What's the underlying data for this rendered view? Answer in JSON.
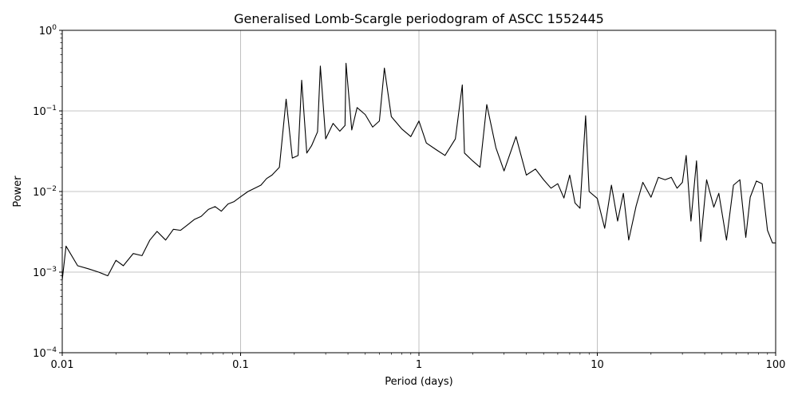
{
  "chart_data": {
    "type": "line",
    "title": "Generalised Lomb-Scargle periodogram of ASCC 1552445",
    "xlabel": "Period (days)",
    "ylabel": "Power",
    "xscale": "log",
    "yscale": "log",
    "xlim": [
      0.01,
      100
    ],
    "ylim": [
      0.0001,
      1
    ],
    "grid": true,
    "x_ticks": [
      {
        "value": 0.01,
        "label": "0.01"
      },
      {
        "value": 0.1,
        "label": "0.1"
      },
      {
        "value": 1,
        "label": "1"
      },
      {
        "value": 10,
        "label": "10"
      },
      {
        "value": 100,
        "label": "100"
      }
    ],
    "y_ticks": [
      {
        "value": 0.0001,
        "base": "10",
        "exp": "−4"
      },
      {
        "value": 0.001,
        "base": "10",
        "exp": "−3"
      },
      {
        "value": 0.01,
        "base": "10",
        "exp": "−2"
      },
      {
        "value": 0.1,
        "base": "10",
        "exp": "−1"
      },
      {
        "value": 1,
        "base": "10",
        "exp": "0"
      }
    ],
    "line_color": "#000000",
    "series": [
      {
        "x": [
          0.01,
          0.0105,
          0.0122,
          0.014,
          0.016,
          0.018,
          0.02,
          0.022,
          0.025,
          0.028,
          0.031,
          0.034,
          0.038,
          0.042,
          0.046,
          0.05,
          0.055,
          0.06,
          0.066,
          0.072,
          0.078,
          0.085,
          0.092,
          0.1,
          0.11,
          0.12,
          0.13,
          0.14,
          0.15,
          0.165,
          0.18,
          0.195,
          0.21,
          0.22,
          0.235,
          0.25,
          0.27,
          0.28,
          0.3,
          0.33,
          0.36,
          0.385,
          0.39,
          0.42,
          0.45,
          0.5,
          0.55,
          0.6,
          0.64,
          0.7,
          0.8,
          0.9,
          1.0,
          1.1,
          1.25,
          1.4,
          1.6,
          1.75,
          1.8,
          2.0,
          2.2,
          2.4,
          2.7,
          3.0,
          3.5,
          4.0,
          4.5,
          5.0,
          5.5,
          6.0,
          6.5,
          7.0,
          7.5,
          8.0,
          8.6,
          9.0,
          10.0,
          11.0,
          12.0,
          13.0,
          14.0,
          15.0,
          16.5,
          18.0,
          20.0,
          22.0,
          24.0,
          26.0,
          28.0,
          30.0,
          31.5,
          33.5,
          36.0,
          38.0,
          41.0,
          45.0,
          48.0,
          53.0,
          58.0,
          63.0,
          68.0,
          72.0,
          78.0,
          84.0,
          90.0,
          96.0,
          100.0
        ],
        "y": [
          0.0008,
          0.0021,
          0.0012,
          0.0011,
          0.001,
          0.0009,
          0.0014,
          0.0012,
          0.0017,
          0.0016,
          0.0025,
          0.0032,
          0.0025,
          0.0034,
          0.0033,
          0.0038,
          0.0045,
          0.0049,
          0.006,
          0.0065,
          0.0057,
          0.007,
          0.0075,
          0.0086,
          0.01,
          0.011,
          0.012,
          0.0145,
          0.016,
          0.02,
          0.14,
          0.026,
          0.028,
          0.24,
          0.03,
          0.037,
          0.055,
          0.36,
          0.045,
          0.07,
          0.056,
          0.066,
          0.39,
          0.058,
          0.11,
          0.09,
          0.063,
          0.075,
          0.34,
          0.085,
          0.06,
          0.048,
          0.075,
          0.04,
          0.033,
          0.028,
          0.045,
          0.21,
          0.03,
          0.024,
          0.02,
          0.12,
          0.035,
          0.018,
          0.048,
          0.016,
          0.019,
          0.014,
          0.011,
          0.0125,
          0.0083,
          0.016,
          0.0072,
          0.0062,
          0.087,
          0.01,
          0.0082,
          0.0035,
          0.012,
          0.0043,
          0.0095,
          0.0025,
          0.0066,
          0.013,
          0.0085,
          0.015,
          0.014,
          0.015,
          0.011,
          0.013,
          0.028,
          0.0043,
          0.024,
          0.0024,
          0.014,
          0.0064,
          0.0095,
          0.0025,
          0.012,
          0.014,
          0.0027,
          0.0085,
          0.0135,
          0.0125,
          0.0033,
          0.0023,
          0.0023
        ]
      }
    ]
  }
}
